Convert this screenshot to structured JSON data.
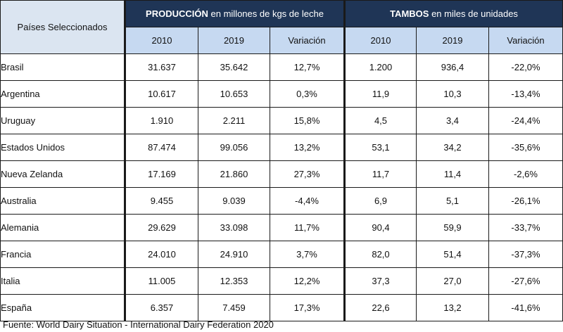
{
  "header": {
    "country_col": "Países Seleccionados",
    "production": {
      "bold": "PRODUCCIÓN",
      "rest": " en millones de kgs de leche"
    },
    "tambos": {
      "bold": "TAMBOS",
      "rest": " en miles de unidades"
    },
    "sub": [
      "2010",
      "2019",
      "Variación",
      "2010",
      "2019",
      "Variación"
    ]
  },
  "rows": [
    {
      "country": "Brasil",
      "cells": [
        "31.637",
        "35.642",
        "12,7%",
        "1.200",
        "936,4",
        "-22,0%"
      ]
    },
    {
      "country": "Argentina",
      "cells": [
        "10.617",
        "10.653",
        "0,3%",
        "11,9",
        "10,3",
        "-13,4%"
      ]
    },
    {
      "country": "Uruguay",
      "cells": [
        "1.910",
        "2.211",
        "15,8%",
        "4,5",
        "3,4",
        "-24,4%"
      ]
    },
    {
      "country": "Estados Unidos",
      "cells": [
        "87.474",
        "99.056",
        "13,2%",
        "53,1",
        "34,2",
        "-35,6%"
      ]
    },
    {
      "country": "Nueva Zelanda",
      "cells": [
        "17.169",
        "21.860",
        "27,3%",
        "11,7",
        "11,4",
        "-2,6%"
      ]
    },
    {
      "country": "Australia",
      "cells": [
        "9.455",
        "9.039",
        "-4,4%",
        "6,9",
        "5,1",
        "-26,1%"
      ]
    },
    {
      "country": "Alemania",
      "cells": [
        "29.629",
        "33.098",
        "11,7%",
        "90,4",
        "59,9",
        "-33,7%"
      ]
    },
    {
      "country": "Francia",
      "cells": [
        "24.010",
        "24.910",
        "3,7%",
        "82,0",
        "51,4",
        "-37,3%"
      ]
    },
    {
      "country": "Italia",
      "cells": [
        "11.005",
        "12.353",
        "12,2%",
        "37,3",
        "27,0",
        "-27,6%"
      ]
    },
    {
      "country": "España",
      "cells": [
        "6.357",
        "7.459",
        "17,3%",
        "22,6",
        "13,2",
        "-41,6%"
      ]
    }
  ],
  "footer": "Fuente: World Dairy Situation - International Dairy Federation 2020"
}
